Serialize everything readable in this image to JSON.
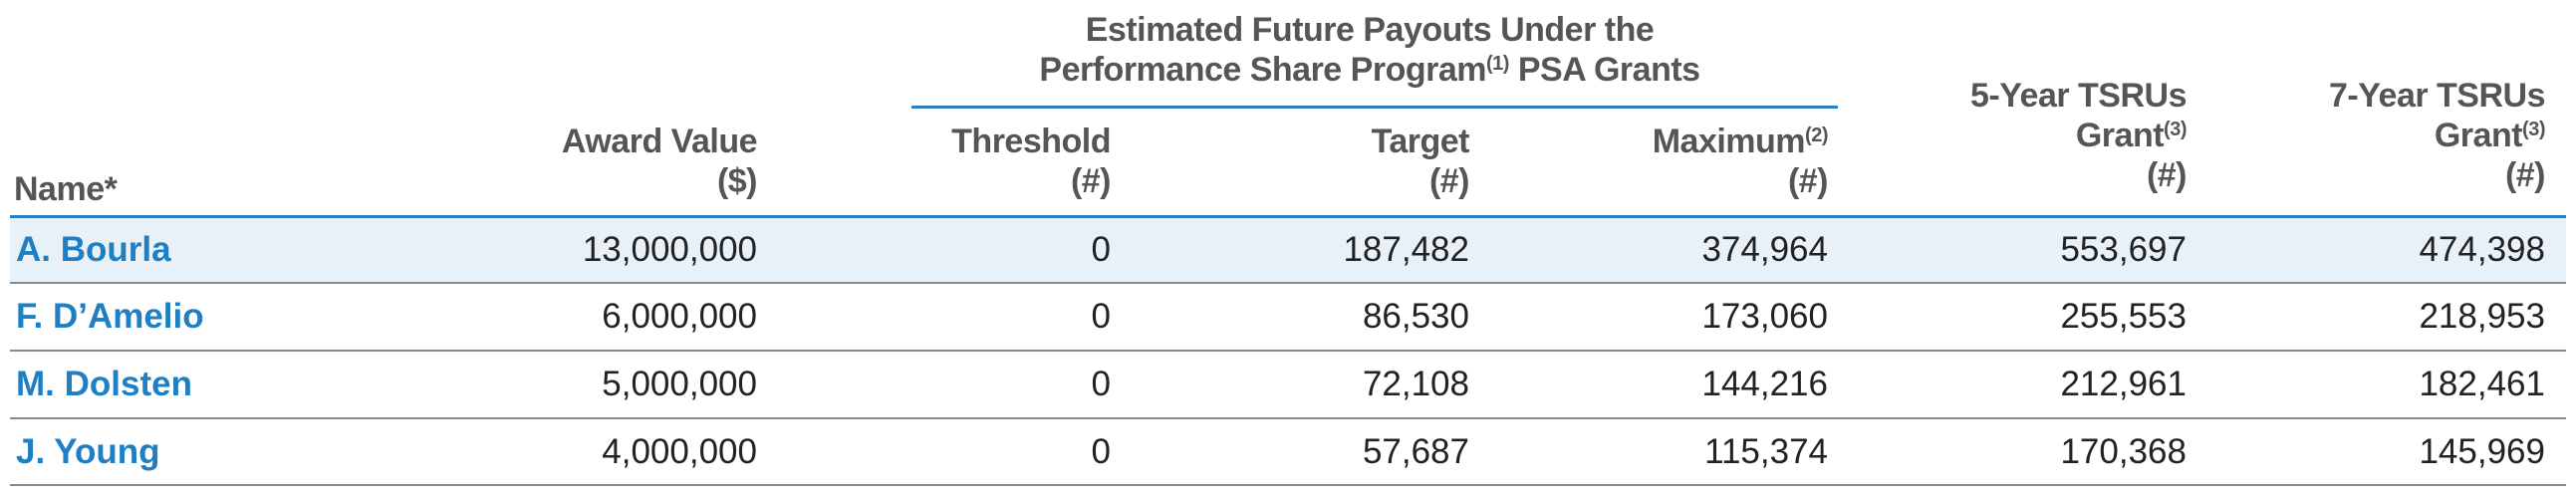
{
  "header": {
    "group_line1": "Estimated Future Payouts Under the",
    "group_line2_pre": "Performance Share Program",
    "group_line2_sup": "(1)",
    "group_line2_post": " PSA Grants",
    "name": "Name*",
    "award_line1": "Award Value",
    "award_line2": "($)",
    "threshold_line1": "Threshold",
    "threshold_line2": "(#)",
    "target_line1": "Target",
    "target_line2": "(#)",
    "maximum_line1": "Maximum",
    "maximum_sup": "(2)",
    "maximum_line2": "(#)",
    "tsru5_line1": "5-Year TSRUs",
    "tsru5_line2": "Grant",
    "tsru5_sup": "(3)",
    "tsru5_line3": "(#)",
    "tsru7_line1": "7-Year TSRUs",
    "tsru7_line2": "Grant",
    "tsru7_sup": "(3)",
    "tsru7_line3": "(#)"
  },
  "rows": [
    {
      "name": "A. Bourla",
      "award": "13,000,000",
      "threshold": "0",
      "target": "187,482",
      "maximum": "374,964",
      "tsru5": "553,697",
      "tsru7": "474,398"
    },
    {
      "name": "F. D’Amelio",
      "award": "6,000,000",
      "threshold": "0",
      "target": "86,530",
      "maximum": "173,060",
      "tsru5": "255,553",
      "tsru7": "218,953"
    },
    {
      "name": "M. Dolsten",
      "award": "5,000,000",
      "threshold": "0",
      "target": "72,108",
      "maximum": "144,216",
      "tsru5": "212,961",
      "tsru7": "182,461"
    },
    {
      "name": "J. Young",
      "award": "4,000,000",
      "threshold": "0",
      "target": "57,687",
      "maximum": "115,374",
      "tsru5": "170,368",
      "tsru7": "145,969"
    }
  ],
  "colors": {
    "name_blue": "#1f7fc4",
    "rule_blue": "#2a7fc0",
    "row_shade": "#e8f0f8"
  }
}
